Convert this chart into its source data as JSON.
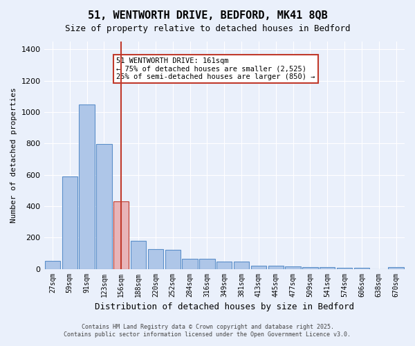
{
  "title": "51, WENTWORTH DRIVE, BEDFORD, MK41 8QB",
  "subtitle": "Size of property relative to detached houses in Bedford",
  "xlabel": "Distribution of detached houses by size in Bedford",
  "ylabel": "Number of detached properties",
  "categories": [
    "27sqm",
    "59sqm",
    "91sqm",
    "123sqm",
    "156sqm",
    "188sqm",
    "220sqm",
    "252sqm",
    "284sqm",
    "316sqm",
    "349sqm",
    "381sqm",
    "413sqm",
    "445sqm",
    "477sqm",
    "509sqm",
    "541sqm",
    "574sqm",
    "606sqm",
    "638sqm",
    "670sqm"
  ],
  "values": [
    50,
    590,
    1050,
    795,
    430,
    180,
    125,
    120,
    65,
    65,
    45,
    45,
    20,
    20,
    15,
    10,
    10,
    5,
    5,
    0,
    10
  ],
  "bar_color": "#aec6e8",
  "bar_edge_color": "#5b8fc9",
  "highlight_bar_color": "#e8b4b8",
  "highlight_bar_edge_color": "#c0392b",
  "highlight_index": 4,
  "vline_x": 4,
  "vline_color": "#c0392b",
  "annotation_text": "51 WENTWORTH DRIVE: 161sqm\n← 75% of detached houses are smaller (2,525)\n25% of semi-detached houses are larger (850) →",
  "annotation_box_color": "#ffffff",
  "annotation_box_edge": "#c0392b",
  "ylim": [
    0,
    1450
  ],
  "yticks": [
    0,
    200,
    400,
    600,
    800,
    1000,
    1200,
    1400
  ],
  "background_color": "#eaf0fb",
  "grid_color": "#ffffff",
  "footer_line1": "Contains HM Land Registry data © Crown copyright and database right 2025.",
  "footer_line2": "Contains public sector information licensed under the Open Government Licence v3.0."
}
